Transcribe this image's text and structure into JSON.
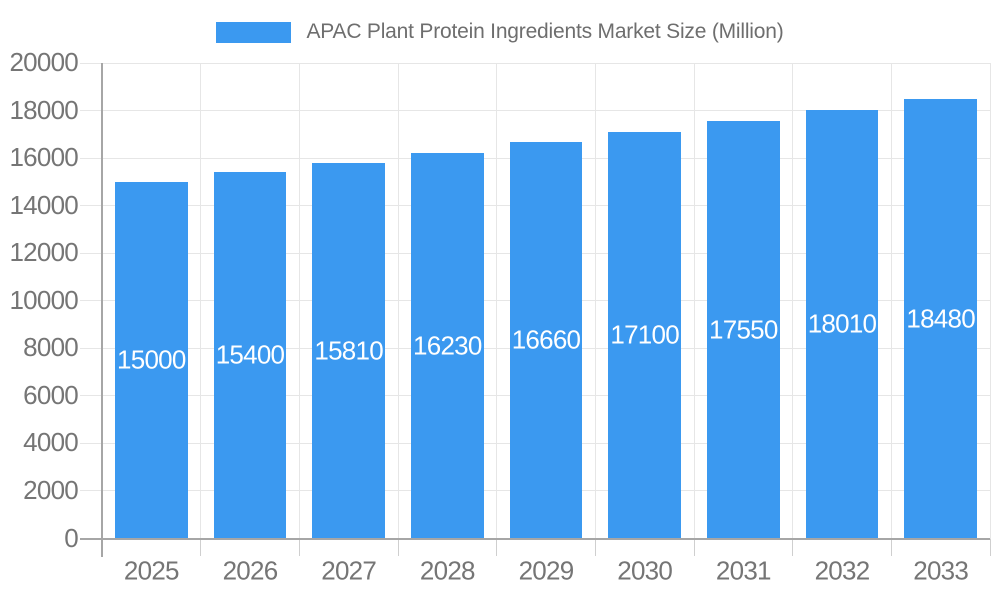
{
  "legend": {
    "label": "APAC Plant Protein Ingredients Market Size (Million)"
  },
  "chart_data": {
    "type": "bar",
    "title": "APAC Plant Protein Ingredients Market Size (Million)",
    "categories": [
      "2025",
      "2026",
      "2027",
      "2028",
      "2029",
      "2030",
      "2031",
      "2032",
      "2033"
    ],
    "values": [
      15000,
      15400,
      15810,
      16230,
      16660,
      17100,
      17550,
      18010,
      18480
    ],
    "xlabel": "",
    "ylabel": "",
    "ylim": [
      0,
      20000
    ],
    "ytick_step": 2000,
    "ytick_labels": [
      "0",
      "2000",
      "4000",
      "6000",
      "8000",
      "10000",
      "12000",
      "14000",
      "16000",
      "18000",
      "20000"
    ],
    "grid": true,
    "legend_position": "top-center",
    "value_label_position": "inside-middle"
  },
  "colors": {
    "bar": "#3b99f0",
    "axis_line": "#a6a6a6",
    "gridline": "#e6e6e6",
    "tick": "#cfcfcf",
    "axis_text": "#757575",
    "title_text": "#6e6e6e",
    "value_text": "#ffffff",
    "background": "#ffffff"
  }
}
